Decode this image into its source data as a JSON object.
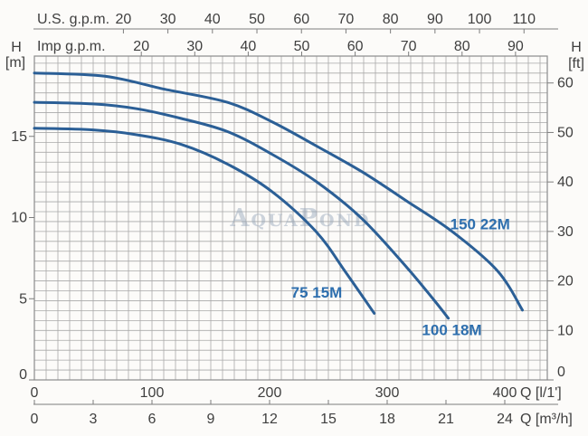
{
  "chart_data": {
    "type": "line",
    "title": "",
    "description": "Pump head (H) vs flow (Q) performance curves for three pump models",
    "axes": {
      "top_us": {
        "title": "U.S. g.p.m.",
        "ticks": [
          20,
          30,
          40,
          50,
          60,
          70,
          80,
          90,
          100,
          110
        ],
        "lmin_per_unit": 3.785
      },
      "top_imp": {
        "title": "Imp g.p.m.",
        "ticks": [
          20,
          30,
          40,
          50,
          60,
          70,
          80,
          90
        ],
        "lmin_per_unit": 4.546
      },
      "left": {
        "title": "H",
        "unit": "[m]",
        "ticks": [
          0,
          5,
          10,
          15
        ],
        "range": [
          0,
          19.9
        ]
      },
      "right": {
        "title": "H",
        "unit": "[ft]",
        "ticks": [
          0,
          10,
          20,
          30,
          40,
          50,
          60
        ],
        "m_per_unit": 0.3048
      },
      "bottom_lmin": {
        "title": "Q [l/1']",
        "ticks": [
          0,
          100,
          200,
          300,
          400
        ],
        "range": [
          0,
          436
        ]
      },
      "bottom_m3h": {
        "title": "Q [m³/h]",
        "ticks": [
          0,
          3,
          6,
          9,
          12,
          15,
          18,
          21,
          24
        ],
        "lmin_per_unit": 16.6667
      }
    },
    "grid": {
      "x_step_lmin": 10,
      "y_step_ft": 2,
      "line_color": "#a9a9a9",
      "border_color": "#8c8c8c",
      "axis_line_color": "#7d7d7d",
      "text_color": "#3f3f3f"
    },
    "series": [
      {
        "name": "75 15M",
        "color": "#2b5f96",
        "label_color": "#2e6fae",
        "label_at_lmin_m": [
          240,
          5.4
        ],
        "points_lmin_m": [
          [
            0,
            15.5
          ],
          [
            50,
            15.4
          ],
          [
            87,
            15.1
          ],
          [
            125,
            14.5
          ],
          [
            164,
            13.3
          ],
          [
            202,
            11.6
          ],
          [
            240,
            9.1
          ],
          [
            265,
            6.6
          ],
          [
            289,
            4.1
          ]
        ]
      },
      {
        "name": "100 18M",
        "color": "#2b5f96",
        "label_color": "#2e6fae",
        "label_at_lmin_m": [
          355,
          3.1
        ],
        "points_lmin_m": [
          [
            0,
            17.1
          ],
          [
            50,
            17.0
          ],
          [
            87,
            16.7
          ],
          [
            125,
            16.1
          ],
          [
            164,
            15.3
          ],
          [
            202,
            13.9
          ],
          [
            240,
            12.2
          ],
          [
            279,
            9.9
          ],
          [
            317,
            6.9
          ],
          [
            340,
            4.9
          ],
          [
            352,
            3.8
          ]
        ]
      },
      {
        "name": "150 22M",
        "color": "#2b5f96",
        "label_color": "#2e6fae",
        "label_at_lmin_m": [
          379,
          9.6
        ],
        "points_lmin_m": [
          [
            0,
            18.9
          ],
          [
            60,
            18.7
          ],
          [
            111,
            17.9
          ],
          [
            164,
            17.1
          ],
          [
            202,
            15.9
          ],
          [
            240,
            14.4
          ],
          [
            279,
            12.8
          ],
          [
            317,
            11.0
          ],
          [
            356,
            9.1
          ],
          [
            394,
            6.7
          ],
          [
            415,
            4.3
          ]
        ]
      }
    ],
    "watermark": {
      "text": "AquaPond",
      "color": "#93a3b8"
    }
  }
}
